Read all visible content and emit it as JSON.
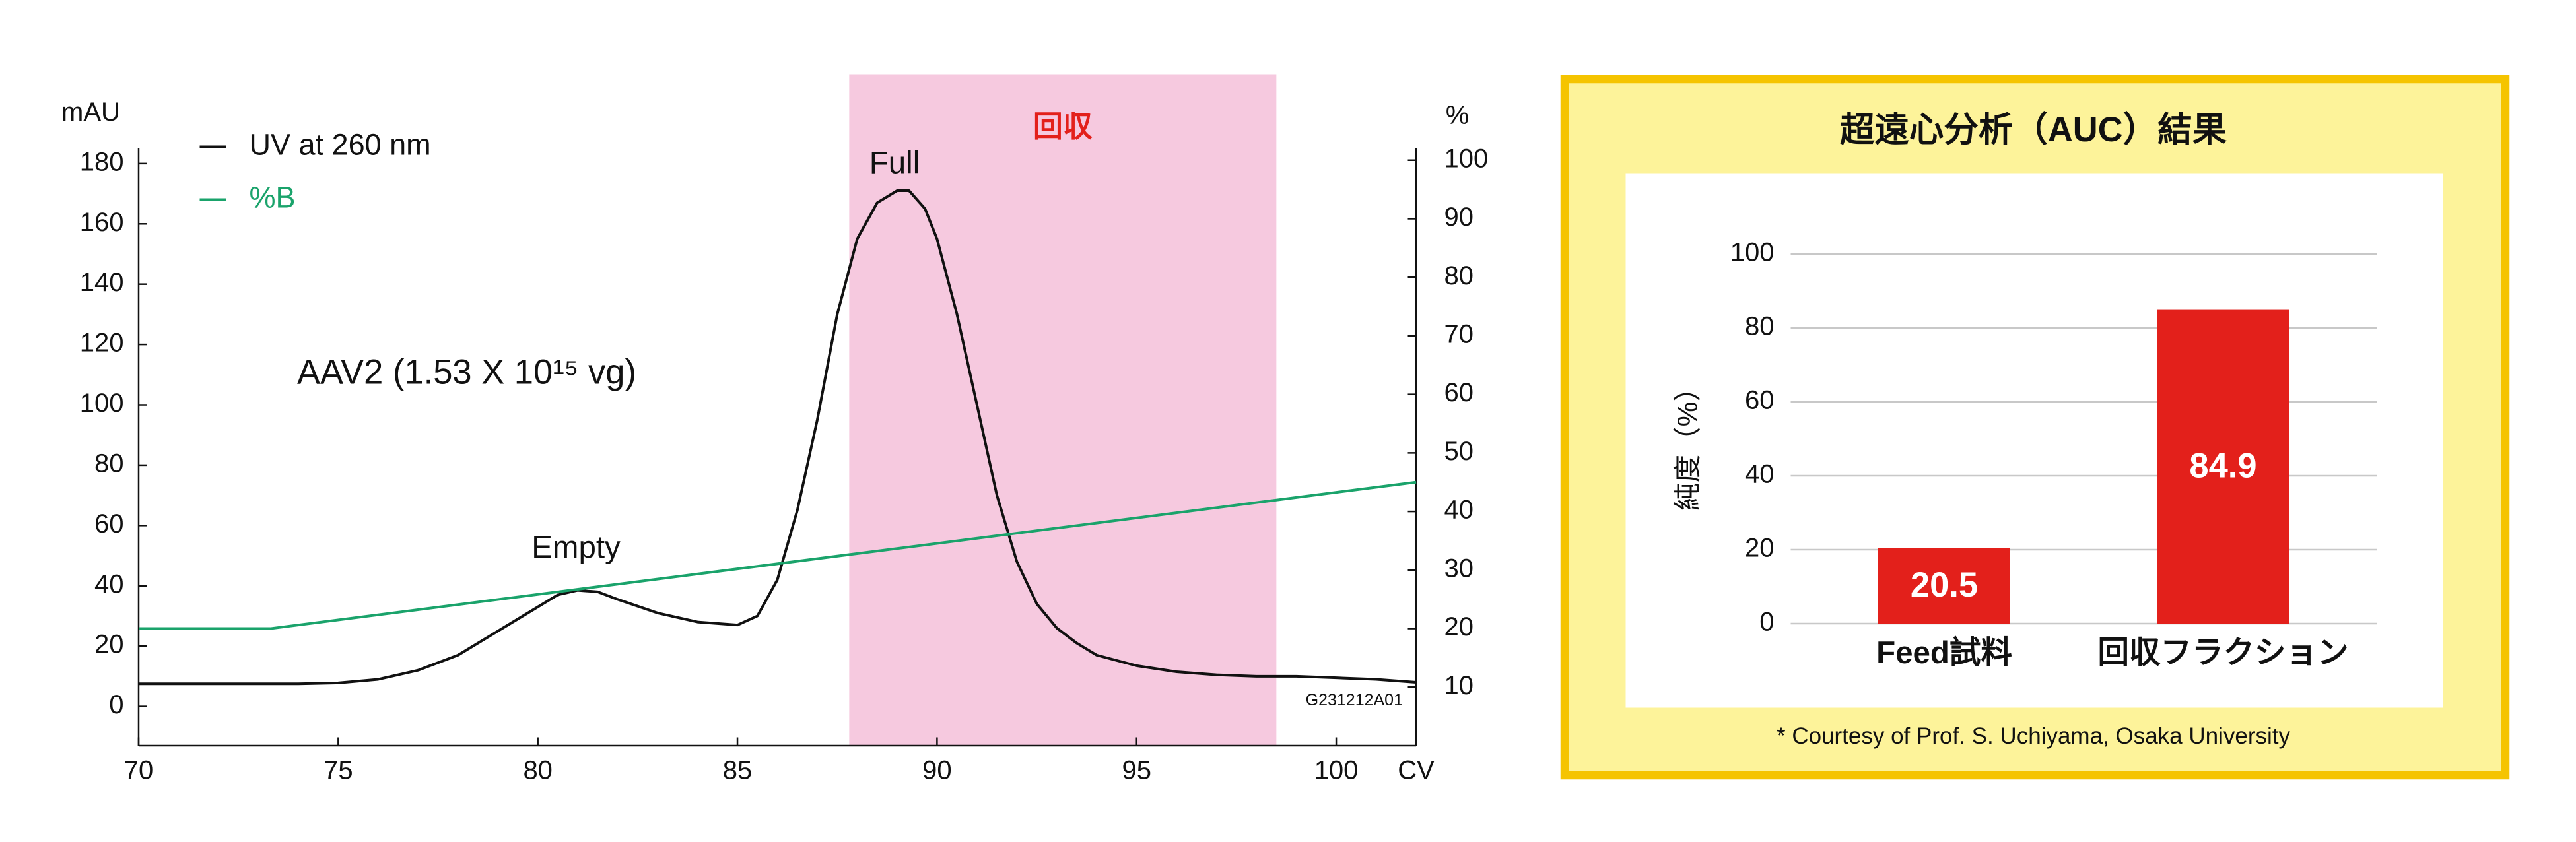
{
  "chart_data": [
    {
      "type": "line",
      "xlabel": "CV",
      "ylabel": "mAU",
      "y2label": "%",
      "xlim": [
        70,
        102
      ],
      "xticks": [
        70,
        75,
        80,
        85,
        90,
        95,
        100
      ],
      "ylim": [
        -13,
        185
      ],
      "yticks": [
        0,
        20,
        40,
        60,
        80,
        100,
        120,
        140,
        160,
        180
      ],
      "y2lim": [
        0,
        102
      ],
      "y2ticks": [
        10,
        20,
        30,
        40,
        50,
        60,
        70,
        80,
        90,
        100
      ],
      "legend": "upper left",
      "series": [
        {
          "name": "UV at 260 nm",
          "color": "#111111",
          "x": [
            70,
            72,
            74,
            75,
            76,
            77,
            78,
            79,
            80,
            80.5,
            81,
            81.5,
            82,
            83,
            84,
            85,
            85.5,
            86,
            86.5,
            87,
            87.5,
            88,
            88.5,
            89,
            89.3,
            89.7,
            90,
            90.5,
            91,
            91.5,
            92,
            92.5,
            93,
            93.5,
            94,
            95,
            96,
            97,
            98,
            99,
            100,
            101,
            102
          ],
          "values": [
            7.5,
            7.5,
            7.5,
            7.8,
            9,
            12,
            17,
            25,
            33,
            37,
            38.5,
            38,
            35.5,
            31,
            28,
            27,
            30,
            42,
            65,
            95,
            130,
            155,
            167,
            171,
            171,
            165,
            155,
            130,
            100,
            70,
            48,
            34,
            26,
            21,
            17,
            13.5,
            11.5,
            10.5,
            10,
            10,
            9.5,
            9,
            8
          ]
        },
        {
          "name": "%B",
          "color": "#1aa36b",
          "axis": "y2",
          "x": [
            70,
            73.3,
            102
          ],
          "values": [
            20,
            20,
            45
          ]
        }
      ],
      "region": {
        "label": "回収",
        "x": [
          87.8,
          98.5
        ],
        "color": "#f6c9df"
      },
      "annotations": [
        "AAV2 (1.53 X 10¹⁵ vg)",
        "Empty",
        "Full"
      ],
      "code": "G231212A01"
    },
    {
      "type": "bar",
      "title": "超遠心分析（AUC）結果",
      "ylabel": "純度（%）",
      "categories": [
        "Feed試料",
        "回収フラクション"
      ],
      "values": [
        20.5,
        84.9
      ],
      "color": "#e3201b",
      "ylim": [
        0,
        100
      ],
      "yticks": [
        0,
        20,
        40,
        60,
        80,
        100
      ],
      "grid": true,
      "footnote": "* Courtesy of Prof. S. Uchiyama, Osaka University"
    }
  ]
}
